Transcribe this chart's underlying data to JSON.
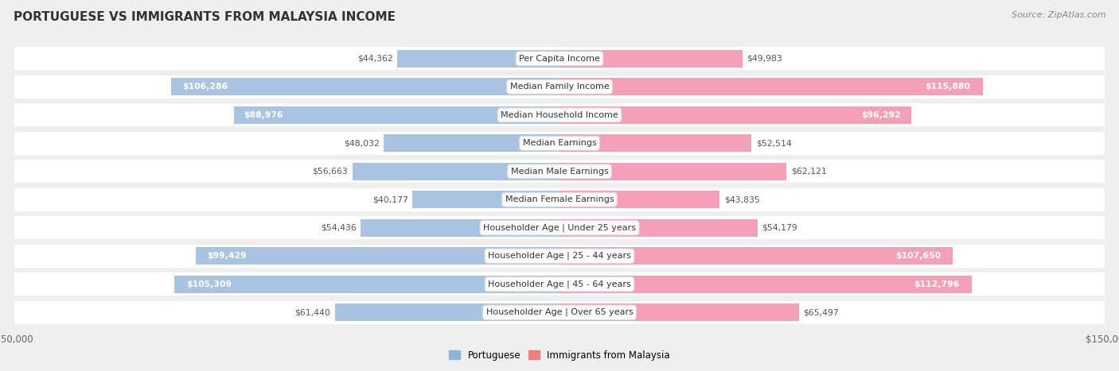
{
  "title": "PORTUGUESE VS IMMIGRANTS FROM MALAYSIA INCOME",
  "source": "Source: ZipAtlas.com",
  "categories": [
    "Per Capita Income",
    "Median Family Income",
    "Median Household Income",
    "Median Earnings",
    "Median Male Earnings",
    "Median Female Earnings",
    "Householder Age | Under 25 years",
    "Householder Age | 25 - 44 years",
    "Householder Age | 45 - 64 years",
    "Householder Age | Over 65 years"
  ],
  "portuguese_values": [
    44362,
    106286,
    88976,
    48032,
    56663,
    40177,
    54436,
    99429,
    105309,
    61440
  ],
  "malaysia_values": [
    49983,
    115880,
    96292,
    52514,
    62121,
    43835,
    54179,
    107650,
    112796,
    65497
  ],
  "portuguese_labels": [
    "$44,362",
    "$106,286",
    "$88,976",
    "$48,032",
    "$56,663",
    "$40,177",
    "$54,436",
    "$99,429",
    "$105,309",
    "$61,440"
  ],
  "malaysia_labels": [
    "$49,983",
    "$115,880",
    "$96,292",
    "$52,514",
    "$62,121",
    "$43,835",
    "$54,179",
    "$107,650",
    "$112,796",
    "$65,497"
  ],
  "max_value": 150000,
  "portugal_bar_color": "#a8c4e0",
  "malaysia_bar_color": "#f4a0b8",
  "bg_color": "#efefef",
  "title_color": "#333333",
  "source_color": "#888888",
  "legend_portuguese_color": "#92b4d4",
  "legend_malaysia_color": "#f08080",
  "label_inside_color": "#ffffff",
  "label_outside_color": "#555555",
  "inside_threshold": 0.55
}
